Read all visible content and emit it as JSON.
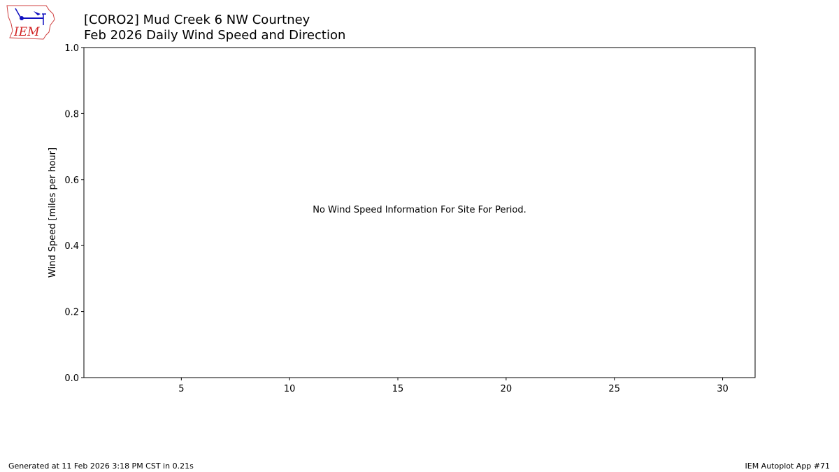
{
  "logo": {
    "text": "IEM",
    "icon": "iem-iowa-logo"
  },
  "title": {
    "line1": "[CORO2] Mud Creek 6 NW Courtney",
    "line2": "Feb 2026 Daily Wind Speed and Direction"
  },
  "chart_data": {
    "type": "bar",
    "title": "[CORO2] Mud Creek 6 NW Courtney\nFeb 2026 Daily Wind Speed and Direction",
    "xlabel": "",
    "ylabel": "Wind Speed [miles per hour]",
    "xlim": [
      0.5,
      31.5
    ],
    "ylim": [
      0,
      1
    ],
    "xticks": [
      5,
      10,
      15,
      20,
      25,
      30
    ],
    "yticks": [
      0.0,
      0.2,
      0.4,
      0.6,
      0.8,
      1.0
    ],
    "ytick_labels": [
      "0.0",
      "0.2",
      "0.4",
      "0.6",
      "0.8",
      "1.0"
    ],
    "grid": false,
    "series": [],
    "annotation": "No Wind Speed Information For Site For Period."
  },
  "footer": {
    "generated": "Generated at 11 Feb 2026 3:18 PM CST in 0.21s",
    "app": "IEM Autoplot App #71"
  }
}
